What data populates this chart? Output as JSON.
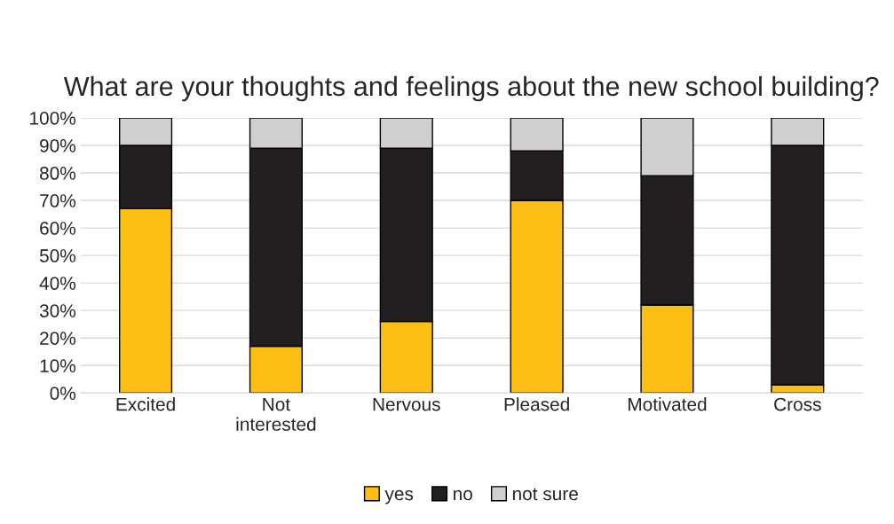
{
  "chart_data": {
    "type": "bar",
    "title": "What are your thoughts and feelings about the new school building?",
    "categories": [
      "Excited",
      "Not\ninterested",
      "Nervous",
      "Pleased",
      "Motivated",
      "Cross"
    ],
    "stacked": true,
    "series": [
      {
        "name": "yes",
        "color": "#fbbf14",
        "values": [
          67,
          17,
          26,
          70,
          32,
          3
        ]
      },
      {
        "name": "no",
        "color": "#231f20",
        "values": [
          23,
          72,
          63,
          18,
          47,
          87
        ]
      },
      {
        "name": "not sure",
        "color": "#d0cece",
        "values": [
          10,
          11,
          11,
          12,
          21,
          10
        ]
      }
    ],
    "ylim": [
      0,
      100
    ],
    "yticks": [
      {
        "value": 0,
        "label": "0%"
      },
      {
        "value": 10,
        "label": "10%"
      },
      {
        "value": 20,
        "label": "20%"
      },
      {
        "value": 30,
        "label": "30%"
      },
      {
        "value": 40,
        "label": "40%"
      },
      {
        "value": 50,
        "label": "50%"
      },
      {
        "value": 60,
        "label": "60%"
      },
      {
        "value": 70,
        "label": "70%"
      },
      {
        "value": 80,
        "label": "80%"
      },
      {
        "value": 90,
        "label": "90%"
      },
      {
        "value": 100,
        "label": "100%"
      }
    ],
    "grid": "y",
    "legend": "bottom"
  }
}
